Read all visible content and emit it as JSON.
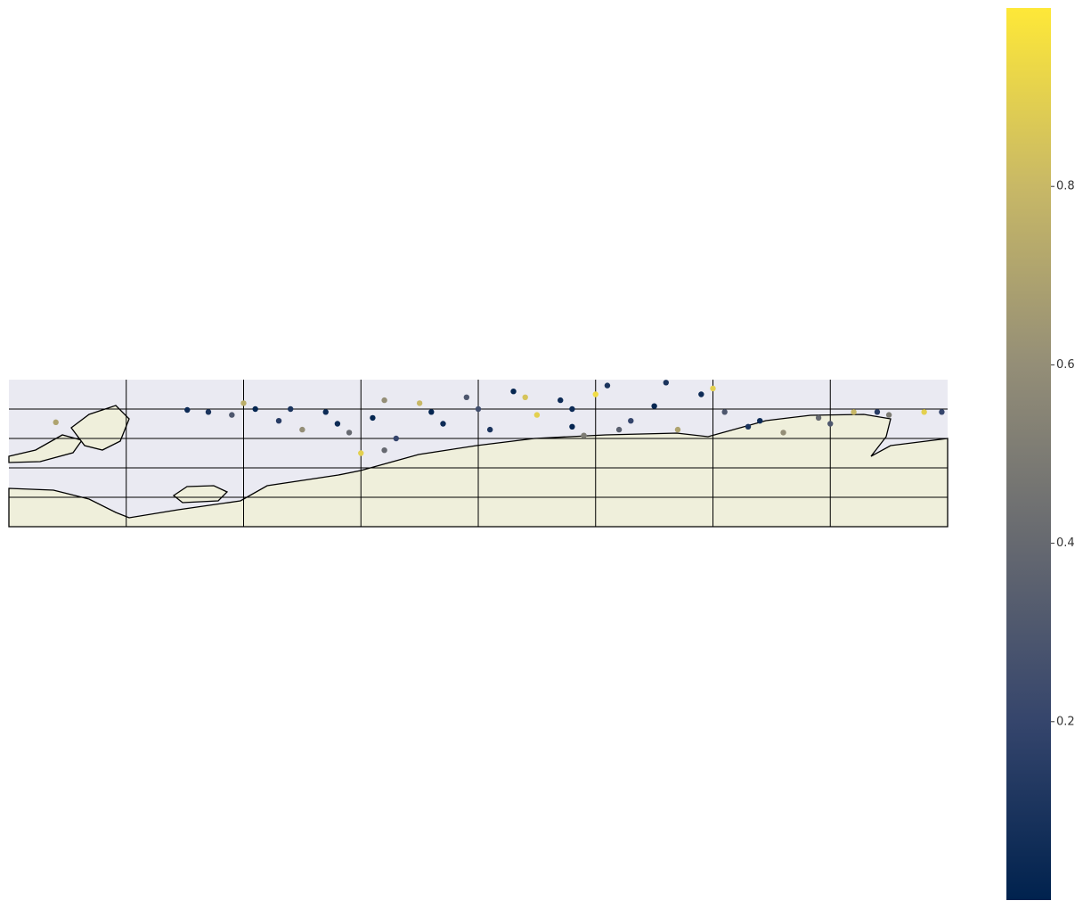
{
  "chart_data": {
    "type": "scatter",
    "xlim": [
      0,
      8
    ],
    "ylim": [
      0,
      5
    ],
    "xticks": [
      1,
      2,
      3,
      4,
      5,
      6,
      7
    ],
    "yticks": [
      1,
      2,
      3,
      4
    ],
    "grid": true,
    "x": [
      1.52,
      1.7,
      1.9,
      2.1,
      2.3,
      2.5,
      2.7,
      2.9,
      3.1,
      3.3,
      3.5,
      3.7,
      3.9,
      4.1,
      4.3,
      4.5,
      4.7,
      4.9,
      5.1,
      5.3,
      5.5,
      5.7,
      5.9,
      6.1,
      6.3,
      6.6,
      6.9,
      7.2,
      7.5,
      7.8,
      7.95,
      2.0,
      2.4,
      2.8,
      3.2,
      3.6,
      4.0,
      4.4,
      4.8,
      5.2,
      5.6,
      6.0,
      6.4,
      7.0,
      7.4,
      0.4,
      3.0,
      3.2,
      4.8,
      5.0
    ],
    "y": [
      3.97,
      3.9,
      3.8,
      4.0,
      3.6,
      3.3,
      3.9,
      3.2,
      3.7,
      3.0,
      4.2,
      3.5,
      4.4,
      3.3,
      4.6,
      3.8,
      4.3,
      3.1,
      4.8,
      3.6,
      4.1,
      3.3,
      4.5,
      3.9,
      3.4,
      3.2,
      3.7,
      3.9,
      3.8,
      3.9,
      3.9,
      4.2,
      4.0,
      3.5,
      4.3,
      3.9,
      4.0,
      4.4,
      4.0,
      3.3,
      4.9,
      4.7,
      3.6,
      3.5,
      3.9,
      3.55,
      2.5,
      2.6,
      3.4,
      4.5
    ],
    "values": [
      0.05,
      0.1,
      0.3,
      0.02,
      0.15,
      0.6,
      0.05,
      0.4,
      0.02,
      0.2,
      0.8,
      0.05,
      0.3,
      0.1,
      0.02,
      0.9,
      0.05,
      0.5,
      0.1,
      0.2,
      0.02,
      0.7,
      0.05,
      0.3,
      0.1,
      0.6,
      0.4,
      0.8,
      0.5,
      0.9,
      0.2,
      0.75,
      0.1,
      0.05,
      0.6,
      0.02,
      0.25,
      0.85,
      0.05,
      0.35,
      0.1,
      0.9,
      0.05,
      0.3,
      0.15,
      0.7,
      0.9,
      0.4,
      0.02,
      0.95
    ],
    "clim": [
      0,
      1
    ],
    "cticks": [
      0.2,
      0.4,
      0.6,
      0.8
    ],
    "colormap": [
      "#00224e",
      "#35456c",
      "#666970",
      "#948e77",
      "#c8b866",
      "#fee838"
    ],
    "ocean_color": "#eaeaf2",
    "land_color": "#efefdb"
  }
}
